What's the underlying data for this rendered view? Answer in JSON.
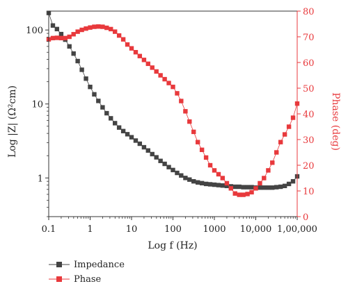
{
  "chart_data": {
    "type": "scatter",
    "xlabel": "Log f (Hz)",
    "ylabel_left": "Log |Z| (Ω²cm)",
    "ylabel_right": "Phase (deg)",
    "x_scale": "log",
    "y_left_scale": "log",
    "x_ticks": [
      {
        "value": 0.1,
        "label": "0.1"
      },
      {
        "value": 1,
        "label": "1"
      },
      {
        "value": 10,
        "label": "10"
      },
      {
        "value": 100,
        "label": "100"
      },
      {
        "value": 1000,
        "label": "1000"
      },
      {
        "value": 10000,
        "label": "10,000"
      },
      {
        "value": 100000,
        "label": "1,00,000"
      }
    ],
    "y_left_ticks": [
      {
        "value": 1,
        "label": "1"
      },
      {
        "value": 10,
        "label": "10"
      },
      {
        "value": 100,
        "label": "100"
      }
    ],
    "y_right_ticks": [
      {
        "value": 0,
        "label": "0"
      },
      {
        "value": 10,
        "label": "10"
      },
      {
        "value": 20,
        "label": "20"
      },
      {
        "value": 30,
        "label": "30"
      },
      {
        "value": 40,
        "label": "40"
      },
      {
        "value": 50,
        "label": "50"
      },
      {
        "value": 60,
        "label": "60"
      },
      {
        "value": 70,
        "label": "70"
      },
      {
        "value": 80,
        "label": "80"
      }
    ],
    "xlim": [
      0.1,
      100000
    ],
    "ylim_left": [
      0.3,
      180
    ],
    "ylim_right": [
      0,
      80
    ],
    "legend_position": "bottom-left",
    "series": [
      {
        "name": "Impedance",
        "axis": "left",
        "color": "#444444",
        "x": [
          0.1,
          0.126,
          0.158,
          0.2,
          0.251,
          0.316,
          0.398,
          0.501,
          0.631,
          0.794,
          1,
          1.26,
          1.58,
          2,
          2.51,
          3.16,
          3.98,
          5.01,
          6.31,
          7.94,
          10,
          12.6,
          15.8,
          20,
          25.1,
          31.6,
          39.8,
          50.1,
          63.1,
          79.4,
          100,
          126,
          158,
          200,
          251,
          316,
          398,
          501,
          631,
          794,
          1000,
          1260,
          1580,
          2000,
          2510,
          3160,
          3980,
          5010,
          6310,
          7940,
          10000,
          12600,
          15800,
          20000,
          25100,
          31600,
          39800,
          50100,
          63100,
          79400,
          100000
        ],
        "y": [
          170,
          115,
          103,
          88,
          74,
          60,
          48,
          38,
          29,
          22,
          17,
          13.5,
          11,
          9.0,
          7.5,
          6.4,
          5.5,
          4.8,
          4.3,
          3.9,
          3.55,
          3.2,
          2.9,
          2.6,
          2.35,
          2.1,
          1.9,
          1.7,
          1.55,
          1.4,
          1.28,
          1.17,
          1.08,
          1.0,
          0.95,
          0.9,
          0.87,
          0.85,
          0.83,
          0.82,
          0.81,
          0.8,
          0.79,
          0.78,
          0.77,
          0.76,
          0.76,
          0.75,
          0.75,
          0.75,
          0.74,
          0.74,
          0.74,
          0.74,
          0.74,
          0.75,
          0.76,
          0.78,
          0.83,
          0.9,
          1.05
        ]
      },
      {
        "name": "Phase",
        "axis": "right",
        "color": "#e8393c",
        "x": [
          0.1,
          0.126,
          0.158,
          0.2,
          0.251,
          0.316,
          0.398,
          0.501,
          0.631,
          0.794,
          1,
          1.26,
          1.58,
          2,
          2.51,
          3.16,
          3.98,
          5.01,
          6.31,
          7.94,
          10,
          12.6,
          15.8,
          20,
          25.1,
          31.6,
          39.8,
          50.1,
          63.1,
          79.4,
          100,
          126,
          158,
          200,
          251,
          316,
          398,
          501,
          631,
          794,
          1000,
          1260,
          1580,
          2000,
          2510,
          3160,
          3980,
          5010,
          6310,
          7940,
          10000,
          12600,
          15800,
          20000,
          25100,
          31600,
          39800,
          50100,
          63100,
          79400,
          100000
        ],
        "y": [
          69,
          69.5,
          69.6,
          69.5,
          69.5,
          70,
          71,
          72,
          72.7,
          73.2,
          73.6,
          73.9,
          74.0,
          73.9,
          73.5,
          73,
          72,
          70.5,
          69,
          67,
          65.5,
          64,
          62.5,
          61,
          59.5,
          58,
          56.5,
          55,
          53.5,
          52,
          50.5,
          48,
          45,
          41,
          37,
          33,
          29,
          26,
          23,
          20,
          18,
          16.5,
          15,
          13,
          11,
          9,
          8.5,
          8.5,
          8.8,
          9.5,
          11,
          13,
          15,
          18,
          21,
          25,
          29,
          32,
          35,
          38.5,
          44
        ]
      }
    ]
  }
}
